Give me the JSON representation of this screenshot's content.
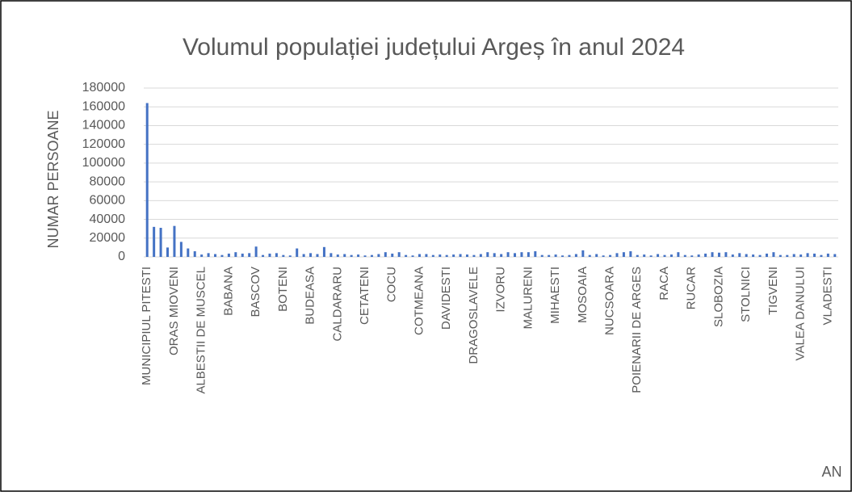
{
  "chart_data": {
    "type": "bar",
    "title": "Volumul populației județului Argeș în anul 2024",
    "y_label": "NUMAR PERSOANE",
    "x_label": "AN",
    "color": "#4472c4",
    "grid": true,
    "ylim": [
      0,
      180000
    ],
    "yticks": [
      0,
      20000,
      40000,
      60000,
      80000,
      100000,
      120000,
      140000,
      160000,
      180000
    ],
    "categories": [
      "MUNICIPIUL PITESTI",
      null,
      null,
      null,
      "ORAS MIOVENI",
      null,
      null,
      null,
      "ALBESTII DE MUSCEL",
      null,
      null,
      null,
      "BABANA",
      null,
      null,
      null,
      "BASCOV",
      null,
      null,
      null,
      "BOTENI",
      null,
      null,
      null,
      "BUDEASA",
      null,
      null,
      null,
      "CALDARARU",
      null,
      null,
      null,
      "CETATENI",
      null,
      null,
      null,
      "COCU",
      null,
      null,
      null,
      "COTMEANA",
      null,
      null,
      null,
      "DAVIDESTI",
      null,
      null,
      null,
      "DRAGOSLAVELE",
      null,
      null,
      null,
      "IZVORU",
      null,
      null,
      null,
      "MALURENI",
      null,
      null,
      null,
      "MIHAESTI",
      null,
      null,
      null,
      "MOSOAIA",
      null,
      null,
      null,
      "NUCSOARA",
      null,
      null,
      null,
      "POIENARII DE ARGES",
      null,
      null,
      null,
      "RACA",
      null,
      null,
      null,
      "RUCAR",
      null,
      null,
      null,
      "SLOBOZIA",
      null,
      null,
      null,
      "STOLNICI",
      null,
      null,
      null,
      "TIGVENI",
      null,
      null,
      null,
      "VALEA DANULUI",
      null,
      null,
      null,
      "VLADESTI",
      null
    ],
    "values": [
      164000,
      32000,
      31000,
      10000,
      33000,
      16000,
      9000,
      6000,
      2500,
      4000,
      3000,
      2000,
      3500,
      5000,
      3500,
      4000,
      11000,
      2000,
      3500,
      4000,
      2000,
      1500,
      9000,
      3000,
      4000,
      3000,
      10500,
      4000,
      2500,
      3000,
      2000,
      2500,
      1500,
      2000,
      3000,
      5000,
      3500,
      5000,
      2000,
      1500,
      3000,
      3000,
      2000,
      2500,
      2000,
      2500,
      3000,
      2500,
      2000,
      3000,
      5000,
      4000,
      3000,
      5000,
      4000,
      5000,
      5000,
      6000,
      2000,
      2000,
      2500,
      1500,
      2000,
      3000,
      7000,
      2000,
      3000,
      1500,
      2000,
      4000,
      5000,
      6000,
      2000,
      2500,
      1500,
      3000,
      2000,
      2500,
      5000,
      2000,
      1500,
      2500,
      3500,
      5000,
      4500,
      5000,
      2500,
      4000,
      3000,
      2500,
      2000,
      3500,
      5000,
      2000,
      2000,
      3000,
      2500,
      4000,
      3500,
      2000,
      3500,
      3000
    ]
  }
}
